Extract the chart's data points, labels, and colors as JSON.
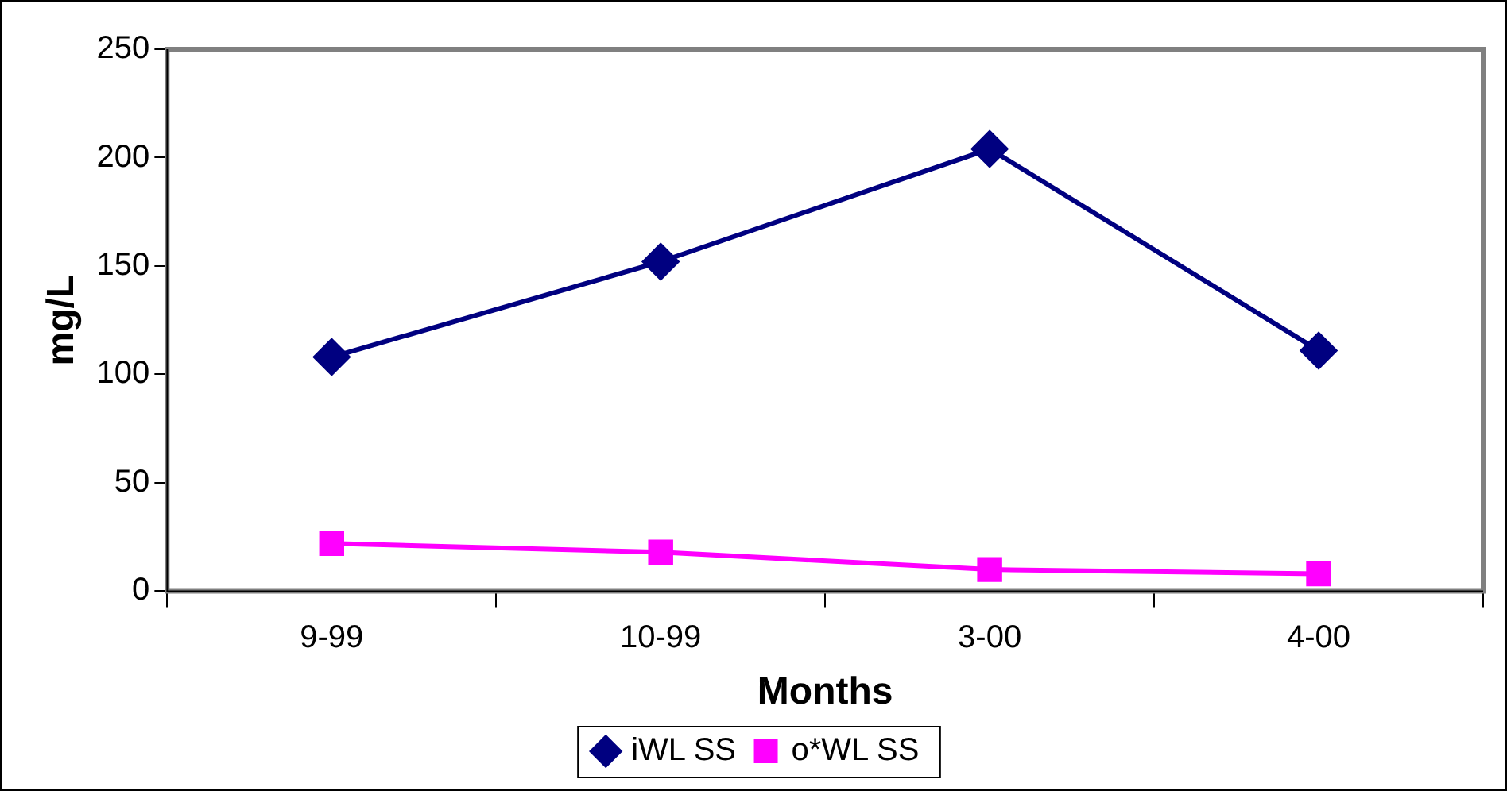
{
  "chart_data": {
    "type": "line",
    "xlabel": "Months",
    "ylabel": "mg/L",
    "categories": [
      "9-99",
      "10-99",
      "3-00",
      "4-00"
    ],
    "series": [
      {
        "name": "iWL SS",
        "color": "#000080",
        "values": [
          108,
          152,
          204,
          111
        ],
        "marker": "diamond"
      },
      {
        "name": "o*WL SS",
        "color": "#ff00ff",
        "values": [
          22,
          18,
          10,
          8
        ],
        "marker": "square"
      }
    ],
    "ylim": [
      0,
      250
    ],
    "yticks": [
      0,
      50,
      100,
      150,
      200,
      250
    ],
    "grid": false,
    "legend": "bottom",
    "line_style": "solid"
  }
}
